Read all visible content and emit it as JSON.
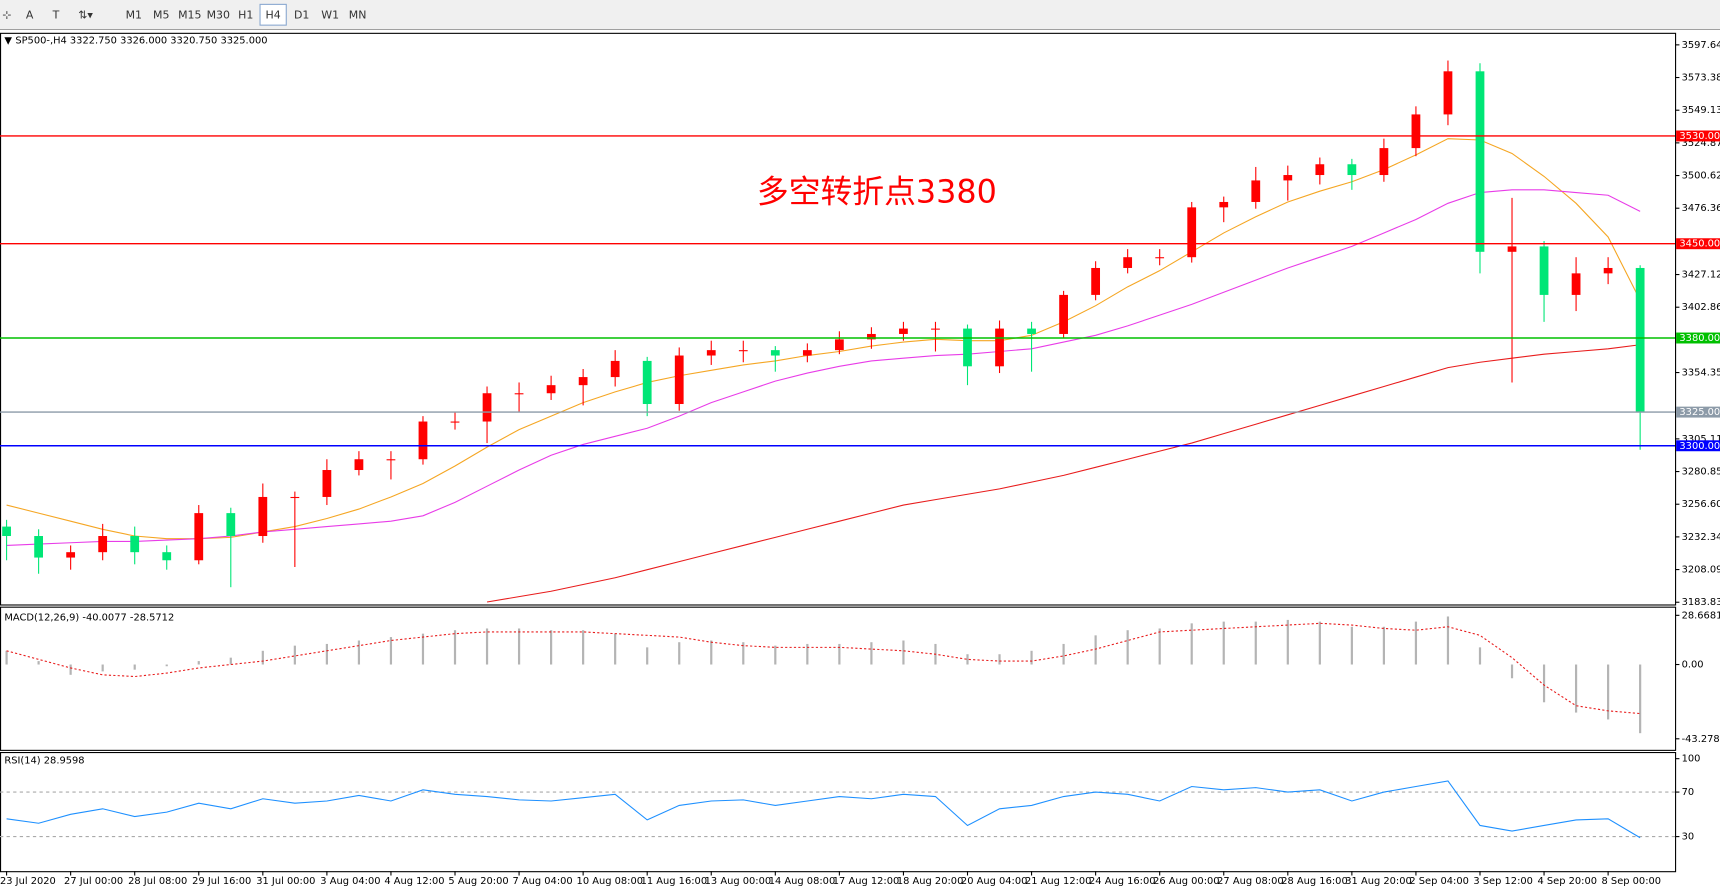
{
  "toolbar": {
    "items": [
      "A",
      "M1",
      "M5",
      "M15",
      "M30",
      "H1",
      "H4",
      "D1",
      "W1",
      "MN"
    ],
    "active": "H4"
  },
  "chart_data": [
    {
      "type": "candlestick",
      "title": "SP500-,H4  3322.750 3326.000 3320.750 3325.000",
      "categories": [
        "23 Jul 2020",
        null,
        "27 Jul 00:00",
        null,
        "28 Jul 08:00",
        null,
        "29 Jul 16:00",
        null,
        "31 Jul 00:00",
        null,
        "3 Aug 04:00",
        null,
        "4 Aug 12:00",
        null,
        "5 Aug 20:00",
        null,
        "7 Aug 04:00",
        null,
        "10 Aug 08:00",
        null,
        "11 Aug 16:00",
        null,
        "13 Aug 00:00",
        null,
        "14 Aug 08:00",
        null,
        "17 Aug 12:00",
        null,
        "18 Aug 20:00",
        null,
        "20 Aug 04:00",
        null,
        "21 Aug 12:00",
        null,
        "24 Aug 16:00",
        null,
        "26 Aug 00:00",
        null,
        "27 Aug 08:00",
        null,
        "28 Aug 16:00",
        null,
        "31 Aug 20:00",
        null,
        "2 Sep 04:00",
        null,
        "3 Sep 12:00",
        null,
        "4 Sep 20:00",
        null,
        "8 Sep 00:00",
        null
      ],
      "open": [
        3240,
        3233,
        3217,
        3221,
        3233,
        3221,
        3215,
        3250,
        3233,
        3262,
        3262,
        3282,
        3290,
        3290,
        3318,
        3318,
        3339,
        3339,
        3345,
        3351,
        3363,
        3331,
        3367,
        3371,
        3371,
        3367,
        3371,
        3379,
        3383,
        3387,
        3387,
        3359,
        3387,
        3383,
        3412,
        3432,
        3440,
        3440,
        3477,
        3481,
        3497,
        3501,
        3509,
        3501,
        3521,
        3546,
        3578,
        3444,
        3448,
        3412,
        3428,
        3432
      ],
      "high": [
        3245,
        3238,
        3226,
        3242,
        3240,
        3226,
        3256,
        3254,
        3272,
        3266,
        3290,
        3296,
        3296,
        3322,
        3325,
        3344,
        3347,
        3352,
        3357,
        3371,
        3366,
        3373,
        3378,
        3378,
        3374,
        3376,
        3385,
        3388,
        3392,
        3392,
        3390,
        3393,
        3392,
        3415,
        3437,
        3446,
        3446,
        3481,
        3485,
        3507,
        3508,
        3514,
        3513,
        3528,
        3552,
        3586,
        3584,
        3484,
        3452,
        3440,
        3440,
        3434
      ],
      "low": [
        3215,
        3205,
        3208,
        3215,
        3212,
        3208,
        3212,
        3195,
        3228,
        3210,
        3256,
        3278,
        3275,
        3286,
        3312,
        3302,
        3325,
        3334,
        3330,
        3344,
        3322,
        3326,
        3360,
        3362,
        3355,
        3362,
        3368,
        3372,
        3378,
        3370,
        3345,
        3354,
        3355,
        3380,
        3408,
        3428,
        3434,
        3436,
        3466,
        3476,
        3482,
        3494,
        3490,
        3496,
        3515,
        3538,
        3428,
        3347,
        3392,
        3400,
        3420,
        3297
      ],
      "close": [
        3233,
        3217,
        3221,
        3233,
        3221,
        3215,
        3250,
        3233,
        3262,
        3262,
        3282,
        3290,
        3290,
        3318,
        3318,
        3339,
        3339,
        3345,
        3351,
        3363,
        3331,
        3367,
        3371,
        3371,
        3367,
        3371,
        3379,
        3383,
        3387,
        3387,
        3359,
        3387,
        3383,
        3412,
        3432,
        3440,
        3440,
        3477,
        3481,
        3497,
        3501,
        3509,
        3501,
        3521,
        3546,
        3578,
        3444,
        3448,
        3412,
        3428,
        3432,
        3325
      ],
      "up_color": "#ff0000",
      "down_color": "#00e676",
      "series": [
        {
          "color": "#f5a623",
          "values": [
            3256,
            3250,
            3244,
            3238,
            3233,
            3231,
            3231,
            3232,
            3236,
            3240,
            3246,
            3253,
            3262,
            3272,
            3285,
            3299,
            3312,
            3322,
            3332,
            3340,
            3347,
            3352,
            3356,
            3360,
            3363,
            3367,
            3370,
            3374,
            3377,
            3379,
            3378,
            3378,
            3382,
            3392,
            3404,
            3418,
            3430,
            3444,
            3458,
            3470,
            3481,
            3489,
            3496,
            3505,
            3516,
            3528,
            3527,
            3517,
            3500,
            3480,
            3455,
            3408
          ]
        },
        {
          "color": "#e83ce8",
          "values": [
            3226,
            3227,
            3228,
            3229,
            3229,
            3230,
            3231,
            3233,
            3236,
            3238,
            3240,
            3242,
            3244,
            3248,
            3258,
            3270,
            3282,
            3293,
            3301,
            3307,
            3313,
            3322,
            3332,
            3340,
            3348,
            3354,
            3359,
            3363,
            3365,
            3367,
            3368,
            3370,
            3372,
            3377,
            3382,
            3389,
            3397,
            3405,
            3414,
            3423,
            3432,
            3440,
            3448,
            3458,
            3468,
            3480,
            3488,
            3490,
            3490,
            3488,
            3486,
            3474
          ]
        },
        {
          "color": "#e81c1c",
          "values": [
            null,
            null,
            null,
            null,
            null,
            null,
            null,
            null,
            null,
            null,
            null,
            null,
            null,
            null,
            null,
            3184,
            3188,
            3192,
            3197,
            3202,
            3208,
            3214,
            3220,
            3226,
            3232,
            3238,
            3244,
            3250,
            3256,
            3260,
            3264,
            3268,
            3273,
            3278,
            3284,
            3290,
            3296,
            3302,
            3309,
            3316,
            3323,
            3330,
            3337,
            3344,
            3351,
            3358,
            3362,
            3365,
            3368,
            3370,
            3372,
            3375
          ]
        }
      ],
      "levels": [
        {
          "value": 3530,
          "label": "3530.000",
          "color": "#ff0000"
        },
        {
          "value": 3450,
          "label": "3450.000",
          "color": "#ff0000"
        },
        {
          "value": 3380,
          "label": "3380.000",
          "color": "#00c000"
        },
        {
          "value": 3300,
          "label": "3300.000",
          "color": "#0000ff"
        },
        {
          "value": 3325,
          "label": "3325.000",
          "color": "#8c9aa8"
        }
      ],
      "annotations": [
        {
          "text": "多空转折点3380",
          "color": "#ff0000"
        }
      ],
      "ylim": [
        3182.2,
        3606.6
      ],
      "yticks": [
        {
          "value": 3597.64,
          "label": "3597.640"
        },
        {
          "value": 3573.385,
          "label": "3573.385"
        },
        {
          "value": 3549.13,
          "label": "3549.130"
        },
        {
          "value": 3524.875,
          "label": "3524.875"
        },
        {
          "value": 3500.62,
          "label": "3500.620"
        },
        {
          "value": 3476.365,
          "label": "3476.365"
        },
        {
          "value": 3427.12,
          "label": "3427.120"
        },
        {
          "value": 3402.865,
          "label": "3402.865"
        },
        3354.355,
        {
          "value": 3305.11,
          "label": "3305.110"
        },
        3280.855,
        {
          "value": 3256.6,
          "label": "3256.600"
        },
        3232.345,
        {
          "value": 3208.09,
          "label": "3208.090"
        },
        3183.835
      ]
    },
    {
      "type": "macd",
      "label": "MACD(12,26,9) -40.0077 -28.5712",
      "histogram": [
        8,
        2,
        -6,
        -4,
        -3,
        -1,
        2,
        4,
        8,
        11,
        12,
        14,
        16,
        18,
        20,
        21,
        21,
        20,
        20,
        18,
        10,
        13,
        14,
        13,
        11,
        12,
        12,
        13,
        14,
        12,
        6,
        6,
        8,
        12,
        17,
        20,
        21,
        24,
        25,
        25,
        26,
        25,
        22,
        22,
        25,
        28,
        10,
        -8,
        -22,
        -28,
        -32,
        -40.0077
      ],
      "signal": [
        8,
        3,
        -2,
        -6,
        -7,
        -5,
        -2,
        0,
        2,
        5,
        8,
        11,
        14,
        16,
        18,
        19,
        19,
        19,
        19,
        18,
        17,
        16,
        13,
        11,
        10,
        10,
        10,
        9,
        8,
        6,
        3,
        2,
        2,
        5,
        9,
        14,
        19,
        20,
        21,
        22,
        23,
        24,
        23,
        21,
        20,
        22,
        17,
        4,
        -12,
        -24,
        -27,
        -28.5712
      ],
      "histogram_color": "#b4b4b4",
      "signal_color": "#e81c1c",
      "ylim": [
        -49.7,
        33.1
      ],
      "yticks": [
        28.6681,
        {
          "value": 0,
          "label": "0.00"
        },
        -43.278
      ]
    },
    {
      "type": "rsi",
      "label": "RSI(14) 28.9598",
      "values": [
        46,
        42,
        50,
        55,
        48,
        52,
        60,
        55,
        64,
        60,
        62,
        67,
        62,
        72,
        68,
        66,
        63,
        62,
        65,
        68,
        45,
        58,
        62,
        63,
        58,
        62,
        66,
        64,
        68,
        66,
        40,
        55,
        58,
        66,
        70,
        68,
        62,
        75,
        72,
        74,
        70,
        72,
        62,
        70,
        75,
        80,
        40,
        35,
        40,
        45,
        46,
        28.9598
      ],
      "color": "#1e90ff",
      "ylim": [
        -2,
        106
      ],
      "yticks": [
        100,
        70,
        30
      ],
      "levels": [
        70,
        30
      ]
    }
  ]
}
